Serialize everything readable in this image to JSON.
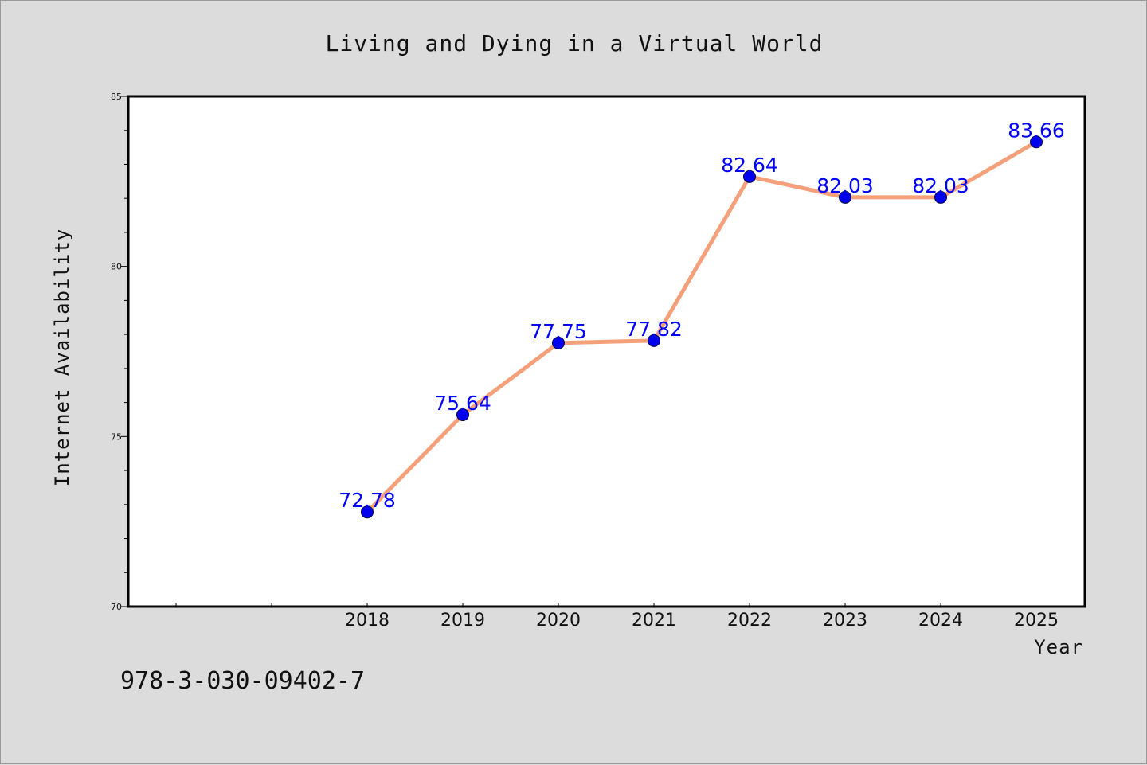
{
  "footer_text": "978-3-030-09402-7",
  "colors": {
    "background": "#dcdcdc",
    "plot_area": "#ffffff",
    "line": "#f4a07a",
    "marker": "#0000ee",
    "data_label": "#0000ff"
  },
  "chart_data": {
    "type": "line",
    "title": "Living and Dying in a Virtual World",
    "xlabel": "Year",
    "ylabel": "Internet Availability",
    "categories": [
      "2018",
      "2019",
      "2020",
      "2021",
      "2022",
      "2023",
      "2024",
      "2025"
    ],
    "series": [
      {
        "values": [
          72.78,
          75.64,
          77.75,
          77.82,
          82.64,
          82.03,
          82.03,
          83.66
        ],
        "labels": [
          "72.78",
          "75.64",
          "77.75",
          "77.82",
          "82.64",
          "82.03",
          "82.03",
          "83.66"
        ]
      }
    ],
    "ylim": [
      70,
      85
    ],
    "yticks": [
      "70",
      "75",
      "80",
      "85"
    ],
    "grid": false,
    "legend": "none"
  }
}
